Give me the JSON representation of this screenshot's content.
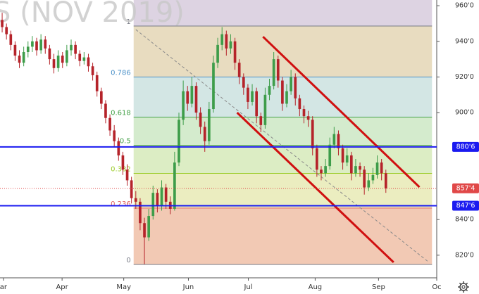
{
  "chart_data": {
    "type": "candlestick",
    "watermark": "S (NOV 2019)",
    "up_color": "#3e9d4a",
    "down_color": "#b5232a",
    "ylim": [
      807.3,
      963.2
    ],
    "xlim": [
      -0.5,
      100.8
    ],
    "yticks": [
      {
        "value": 960,
        "label": "960'0"
      },
      {
        "value": 940,
        "label": "940'0"
      },
      {
        "value": 920,
        "label": "920'0"
      },
      {
        "value": 900,
        "label": "900'0"
      },
      {
        "value": 840,
        "label": "840'0"
      },
      {
        "value": 820,
        "label": "820'0"
      }
    ],
    "xticks": [
      {
        "value": 0.3,
        "label": "ar"
      },
      {
        "value": 13.9,
        "label": "Apr"
      },
      {
        "value": 28.2,
        "label": "May"
      },
      {
        "value": 43.2,
        "label": "Jun"
      },
      {
        "value": 57.1,
        "label": "Jul"
      },
      {
        "value": 72.6,
        "label": "Aug"
      },
      {
        "value": 87.3,
        "label": "Sep"
      },
      {
        "value": 100.8,
        "label": "Oc"
      }
    ],
    "ohlc": [
      [
        952,
        956,
        945,
        948
      ],
      [
        948,
        950,
        941,
        944
      ],
      [
        944,
        946,
        935,
        938
      ],
      [
        938,
        940,
        929,
        932
      ],
      [
        932,
        935,
        925,
        928
      ],
      [
        928,
        937,
        926,
        934
      ],
      [
        934,
        940,
        931,
        937
      ],
      [
        937,
        943,
        934,
        940
      ],
      [
        940,
        942,
        932,
        935
      ],
      [
        935,
        944,
        933,
        941
      ],
      [
        941,
        943,
        933,
        936
      ],
      [
        936,
        938,
        927,
        930
      ],
      [
        930,
        933,
        922,
        925
      ],
      [
        925,
        935,
        923,
        932
      ],
      [
        932,
        934,
        925,
        928
      ],
      [
        928,
        938,
        926,
        935
      ],
      [
        935,
        941,
        932,
        938
      ],
      [
        938,
        940,
        930,
        933
      ],
      [
        933,
        935,
        926,
        929
      ],
      [
        929,
        934,
        927,
        931
      ],
      [
        931,
        933,
        923,
        926
      ],
      [
        926,
        928,
        918,
        921
      ],
      [
        921,
        923,
        909,
        912
      ],
      [
        912,
        914,
        902,
        905
      ],
      [
        905,
        907,
        894,
        897
      ],
      [
        897,
        899,
        887,
        890
      ],
      [
        890,
        893,
        881,
        884
      ],
      [
        884,
        886,
        873,
        876
      ],
      [
        876,
        878,
        865,
        868
      ],
      [
        868,
        871,
        859,
        862
      ],
      [
        862,
        864,
        849,
        852
      ],
      [
        852,
        856,
        846,
        850
      ],
      [
        850,
        852,
        834,
        838
      ],
      [
        838,
        841,
        815,
        830
      ],
      [
        830,
        846,
        828,
        842
      ],
      [
        842,
        859,
        840,
        855
      ],
      [
        855,
        857,
        844,
        848
      ],
      [
        848,
        862,
        845,
        858
      ],
      [
        858,
        860,
        846,
        850
      ],
      [
        850,
        853,
        843,
        846
      ],
      [
        846,
        878,
        845,
        872
      ],
      [
        872,
        900,
        870,
        896
      ],
      [
        896,
        918,
        893,
        912
      ],
      [
        912,
        915,
        901,
        905
      ],
      [
        905,
        920,
        903,
        915
      ],
      [
        915,
        917,
        896,
        900
      ],
      [
        900,
        903,
        888,
        892
      ],
      [
        892,
        895,
        878,
        884
      ],
      [
        884,
        906,
        882,
        902
      ],
      [
        902,
        932,
        900,
        928
      ],
      [
        928,
        942,
        925,
        938
      ],
      [
        938,
        948,
        935,
        944
      ],
      [
        944,
        946,
        932,
        936
      ],
      [
        936,
        944,
        933,
        940
      ],
      [
        940,
        942,
        924,
        928
      ],
      [
        928,
        930,
        916,
        920
      ],
      [
        920,
        922,
        910,
        914
      ],
      [
        914,
        916,
        902,
        906
      ],
      [
        906,
        916,
        904,
        912
      ],
      [
        912,
        914,
        894,
        898
      ],
      [
        898,
        900,
        889,
        893
      ],
      [
        893,
        914,
        891,
        910
      ],
      [
        910,
        919,
        907,
        915
      ],
      [
        915,
        934,
        913,
        930
      ],
      [
        930,
        932,
        914,
        918
      ],
      [
        918,
        920,
        901,
        905
      ],
      [
        905,
        916,
        903,
        912
      ],
      [
        912,
        924,
        910,
        920
      ],
      [
        920,
        922,
        904,
        908
      ],
      [
        908,
        910,
        898,
        902
      ],
      [
        902,
        904,
        894,
        898
      ],
      [
        898,
        901,
        892,
        896
      ],
      [
        896,
        898,
        876,
        880
      ],
      [
        880,
        882,
        864,
        868
      ],
      [
        868,
        870,
        862,
        866
      ],
      [
        866,
        874,
        864,
        870
      ],
      [
        870,
        886,
        868,
        882
      ],
      [
        882,
        892,
        880,
        888
      ],
      [
        888,
        890,
        876,
        880
      ],
      [
        880,
        882,
        868,
        872
      ],
      [
        872,
        880,
        870,
        876
      ],
      [
        876,
        878,
        862,
        866
      ],
      [
        866,
        874,
        864,
        870
      ],
      [
        870,
        872,
        864,
        868
      ],
      [
        868,
        870,
        854,
        858
      ],
      [
        858,
        866,
        856,
        862
      ],
      [
        862,
        869,
        860,
        865
      ],
      [
        865,
        876,
        863,
        872
      ],
      [
        872,
        874,
        862,
        866
      ],
      [
        866,
        868,
        855,
        857.5
      ]
    ],
    "fib": {
      "x": [
        30.5,
        99.7
      ],
      "top_fill": "#ddd3e2",
      "levels": [
        {
          "level": {
            "value": 948.6,
            "label": "1"
          },
          "color": "#787b86",
          "fill": "#e8dcc0"
        },
        {
          "level": {
            "value": 920.0,
            "label": "0.786"
          },
          "color": "#4a90c8",
          "fill": "#d3e6e4"
        },
        {
          "level": {
            "value": 897.5,
            "label": "0.618"
          },
          "color": "#43a047",
          "fill": "#d4ebcd"
        },
        {
          "level": {
            "value": 881.7,
            "label": "0.5"
          },
          "color": "#43a047",
          "fill": "#dcedc4"
        },
        {
          "level": {
            "value": 865.9,
            "label": "0.382"
          },
          "color": "#9ccc2a",
          "fill": "#ebedc0"
        },
        {
          "level": {
            "value": 846.4,
            "label": "0.236"
          },
          "color": "#e06060",
          "fill": "#f2c9b4"
        },
        {
          "level": {
            "value": 814.8,
            "label": "0"
          },
          "color": "#787b86",
          "fill": null
        }
      ]
    },
    "hlines": [
      {
        "price": {
          "value": 880.75,
          "label": "880'6"
        },
        "color": "#1a1af0",
        "style": "solid"
      },
      {
        "price": {
          "value": 847.75,
          "label": "847'6"
        },
        "color": "#1a1af0",
        "style": "solid"
      },
      {
        "price": {
          "value": 857.5,
          "label": "857'4"
        },
        "color": "#e04848",
        "style": "dotted"
      }
    ],
    "trendlines": [
      {
        "x": [
          60.5,
          96.8
        ],
        "y": [
          942.6,
          858.2
        ],
        "color": "#d01010",
        "style": "solid"
      },
      {
        "x": [
          54.5,
          90.8
        ],
        "y": [
          900.0,
          816.0
        ],
        "color": "#d01010",
        "style": "solid"
      },
      {
        "x": [
          31.0,
          99.0
        ],
        "y": [
          946.6,
          816.0
        ],
        "color": "#8a8a8a",
        "style": "dashed"
      }
    ]
  }
}
